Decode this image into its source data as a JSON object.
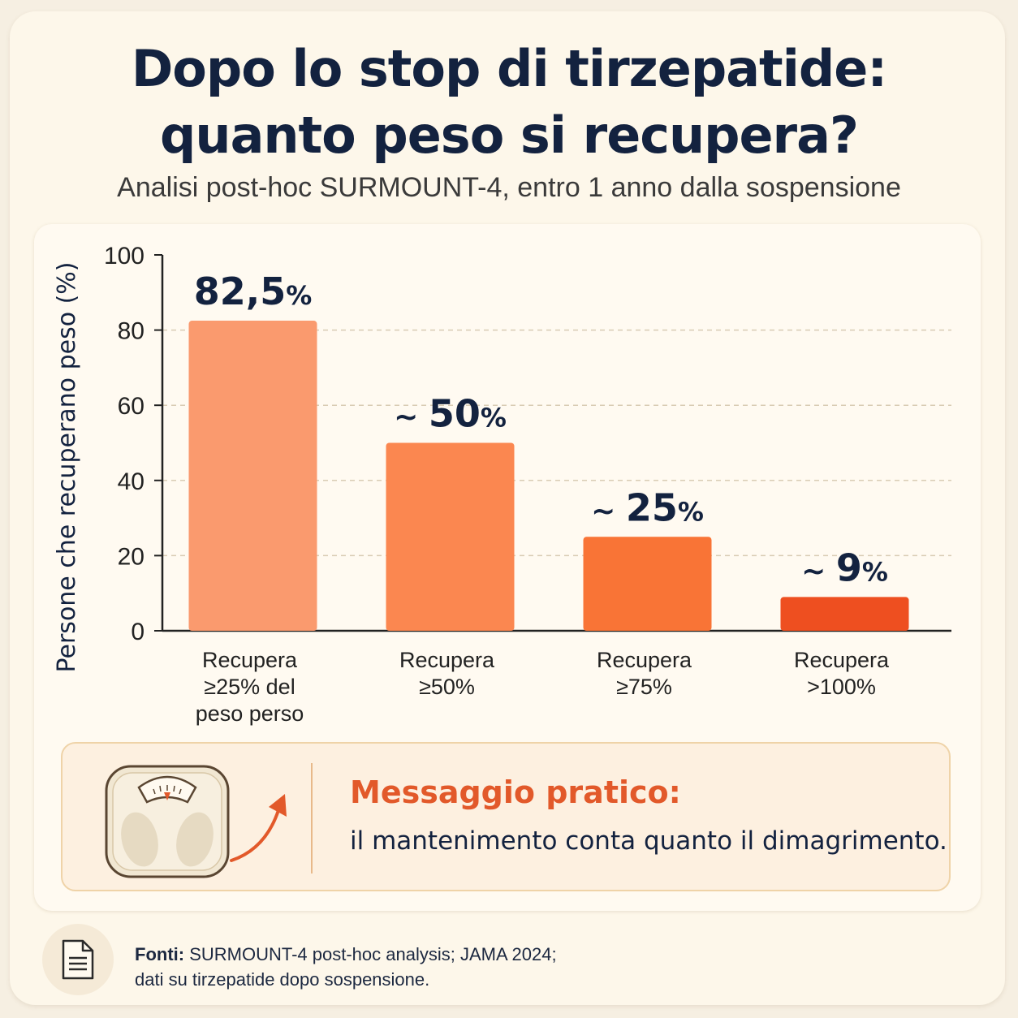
{
  "header": {
    "title_line1": "Dopo lo stop di tirzepatide:",
    "title_line2": "quanto peso si recupera?",
    "subtitle": "Analisi post-hoc SURMOUNT-4, entro 1 anno dalla sospensione"
  },
  "chart_data": {
    "type": "bar",
    "ylabel": "Persone che recuperano peso (%)",
    "ylim": [
      0,
      100
    ],
    "yticks": [
      0,
      20,
      40,
      60,
      80,
      100
    ],
    "grid": true,
    "categories": [
      [
        "Recupera",
        "≥25% del",
        "peso perso"
      ],
      [
        "Recupera",
        "≥50%"
      ],
      [
        "Recupera",
        "≥75%"
      ],
      [
        "Recupera",
        ">100%"
      ]
    ],
    "values": [
      82.5,
      50,
      25,
      9
    ],
    "value_labels": [
      {
        "prefix": "",
        "number": "82,5",
        "unit": "%"
      },
      {
        "prefix": "~",
        "number": "50",
        "unit": "%"
      },
      {
        "prefix": "~",
        "number": "25",
        "unit": "%"
      },
      {
        "prefix": "~",
        "number": "9",
        "unit": "%"
      }
    ],
    "colors": [
      "#fa9a6e",
      "#fb8750",
      "#f97436",
      "#ee4f20"
    ]
  },
  "callout": {
    "title": "Messaggio pratico:",
    "text": "il mantenimento conta quanto il dimagrimento.",
    "icon": "bathroom-scale-icon",
    "arrow_color": "#e2592a"
  },
  "footer": {
    "sources_label": "Fonti:",
    "sources_line1": " SURMOUNT-4 post-hoc analysis; JAMA 2024;",
    "sources_line2": "dati su tirzepatide dopo sospensione.",
    "icon": "document-icon"
  }
}
